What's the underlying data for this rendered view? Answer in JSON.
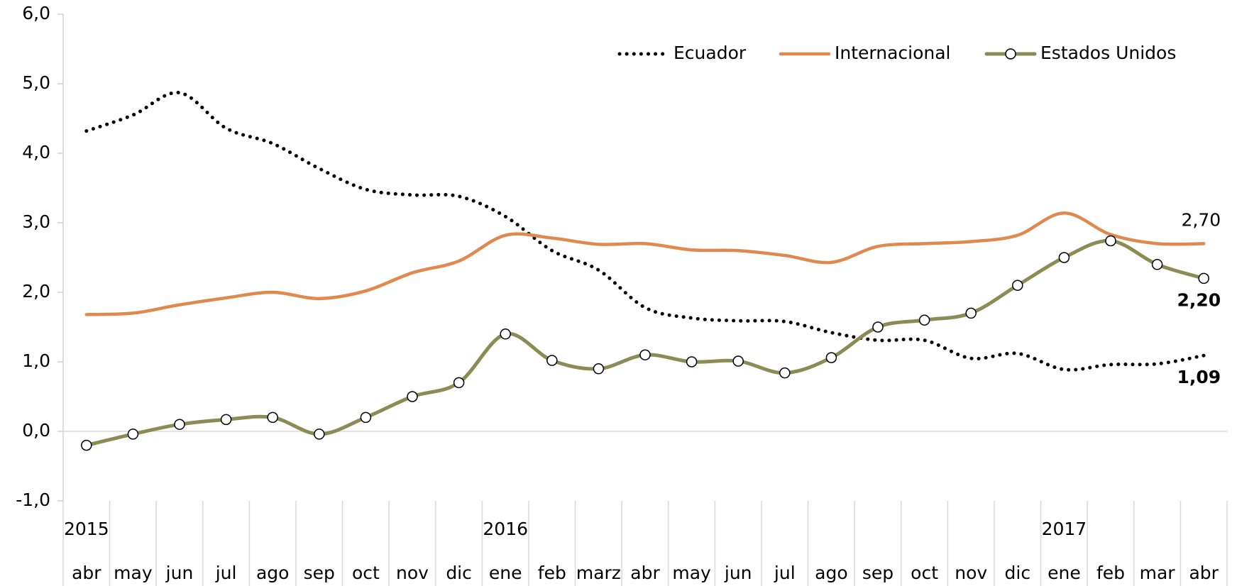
{
  "chart_data": {
    "type": "line",
    "categories": [
      "abr",
      "may",
      "jun",
      "jul",
      "ago",
      "sep",
      "oct",
      "nov",
      "dic",
      "ene",
      "feb",
      "marz",
      "abr",
      "may",
      "jun",
      "jul",
      "ago",
      "sep",
      "oct",
      "nov",
      "dic",
      "ene",
      "feb",
      "mar",
      "abr"
    ],
    "year_categories": [
      "2015",
      null,
      null,
      null,
      null,
      null,
      null,
      null,
      null,
      "2016",
      null,
      null,
      null,
      null,
      null,
      null,
      null,
      null,
      null,
      null,
      null,
      "2017",
      null,
      null,
      null
    ],
    "ylim": [
      -1,
      6
    ],
    "yticks": [
      {
        "value": -1,
        "label": "-1,0"
      },
      {
        "value": 0,
        "label": "0,0"
      },
      {
        "value": 1,
        "label": "1,0"
      },
      {
        "value": 2,
        "label": "2,0"
      },
      {
        "value": 3,
        "label": "3,0"
      },
      {
        "value": 4,
        "label": "4,0"
      },
      {
        "value": 5,
        "label": "5,0"
      },
      {
        "value": 6,
        "label": "6,0"
      }
    ],
    "series": [
      {
        "name": "Ecuador",
        "color": "#000000",
        "style": "dotted",
        "label_color": "#9aab2e",
        "values": [
          4.32,
          4.55,
          4.87,
          4.36,
          4.14,
          3.78,
          3.48,
          3.4,
          3.38,
          3.09,
          2.6,
          2.32,
          1.78,
          1.63,
          1.59,
          1.58,
          1.42,
          1.31,
          1.31,
          1.05,
          1.12,
          0.89,
          0.96,
          0.97,
          1.09
        ],
        "value_labels": [
          null,
          null,
          null,
          null,
          null,
          null,
          null,
          null,
          null,
          null,
          null,
          null,
          null,
          null,
          null,
          null,
          null,
          null,
          null,
          null,
          null,
          null,
          null,
          null,
          "1,09"
        ]
      },
      {
        "name": "Internacional",
        "color": "#e0894f",
        "style": "solid",
        "label_color": "#e0894f",
        "values": [
          1.68,
          1.7,
          1.82,
          1.92,
          2.0,
          1.91,
          2.02,
          2.28,
          2.45,
          2.82,
          2.78,
          2.69,
          2.7,
          2.61,
          2.6,
          2.53,
          2.43,
          2.66,
          2.7,
          2.73,
          2.82,
          3.14,
          2.83,
          2.7,
          2.7
        ],
        "value_labels": [
          null,
          null,
          null,
          null,
          null,
          null,
          null,
          null,
          null,
          null,
          null,
          null,
          null,
          null,
          null,
          null,
          null,
          null,
          null,
          null,
          null,
          null,
          null,
          null,
          "2,70"
        ]
      },
      {
        "name": "Estados Unidos",
        "color": "#8c8a55",
        "style": "markers",
        "label_color": "#4f4b26",
        "values": [
          -0.2,
          -0.04,
          0.1,
          0.17,
          0.2,
          -0.04,
          0.2,
          0.5,
          0.7,
          1.4,
          1.02,
          0.9,
          1.1,
          1.0,
          1.01,
          0.84,
          1.06,
          1.5,
          1.6,
          1.7,
          2.1,
          2.5,
          2.74,
          2.4,
          2.2
        ],
        "value_labels": [
          null,
          null,
          null,
          null,
          null,
          null,
          null,
          null,
          null,
          null,
          null,
          null,
          null,
          null,
          null,
          null,
          null,
          null,
          null,
          null,
          null,
          null,
          null,
          null,
          "2,20"
        ]
      }
    ]
  }
}
